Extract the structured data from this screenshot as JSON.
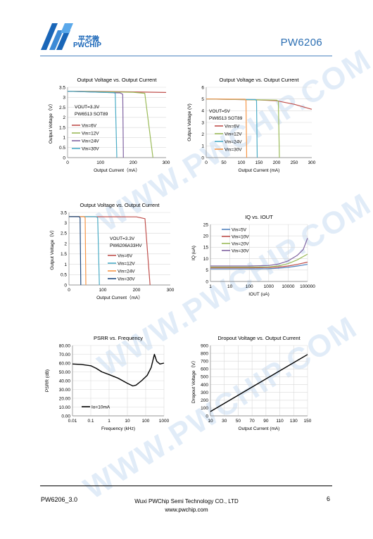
{
  "header": {
    "logo_cn": "平芯微",
    "logo_en": "PWCHIP",
    "doc_title": "PW6206",
    "accent": "#2c6fb3"
  },
  "footer": {
    "code": "PW6206_3.0",
    "company": "Wuxi PWChip Semi Technology CO., LTD",
    "site": "www.pwchip.com",
    "page": "6"
  },
  "watermark": "WWW.PWCHIP.COM",
  "chart_data": [
    {
      "id": "c1",
      "type": "line",
      "title": "Output Voltage vs. Output Current",
      "xlabel": "Output Current（mA）",
      "ylabel": "Output Voltage（V）",
      "xlim": [
        0,
        300
      ],
      "ylim": [
        0,
        3.5
      ],
      "xticks": [
        "0",
        "100",
        "200",
        "300"
      ],
      "yticks": [
        "0",
        "0.5",
        "1",
        "1.5",
        "2",
        "2.5",
        "3",
        "3.5"
      ],
      "annotations": [
        "VOUT=3.3V",
        "PW6513   SOT89"
      ],
      "series": [
        {
          "name": "Vin=6V",
          "color": "#c0504d",
          "x": [
            0,
            100,
            200,
            300
          ],
          "y": [
            3.3,
            3.29,
            3.27,
            3.24
          ]
        },
        {
          "name": "Vin=12V",
          "color": "#9bbb59",
          "x": [
            0,
            200,
            235,
            260
          ],
          "y": [
            3.3,
            3.25,
            3.2,
            0
          ]
        },
        {
          "name": "Vin=24V",
          "color": "#8064a2",
          "x": [
            0,
            160,
            168,
            170
          ],
          "y": [
            3.3,
            3.22,
            3.15,
            0
          ]
        },
        {
          "name": "Vin=30V",
          "color": "#4bacc6",
          "x": [
            0,
            140,
            145,
            150
          ],
          "y": [
            3.3,
            3.23,
            3.2,
            0
          ]
        }
      ]
    },
    {
      "id": "c2",
      "type": "line",
      "title": "Output Voltage vs. Output Current",
      "xlabel": "Output Current (mA)",
      "ylabel": "Output Voltage (V)",
      "xlim": [
        0,
        300
      ],
      "ylim": [
        0,
        6
      ],
      "xticks": [
        "0",
        "50",
        "100",
        "150",
        "200",
        "250",
        "300"
      ],
      "yticks": [
        "0",
        "1",
        "2",
        "3",
        "4",
        "5",
        "6"
      ],
      "annotations": [
        "VOUT=5V",
        "PW6513   SOT89"
      ],
      "series": [
        {
          "name": "Vin=6V",
          "color": "#c0504d",
          "x": [
            0,
            150,
            200,
            250,
            300
          ],
          "y": [
            5,
            4.92,
            4.85,
            4.55,
            4.12
          ]
        },
        {
          "name": "Vin=12V",
          "color": "#9bbb59",
          "x": [
            0,
            200,
            205,
            208
          ],
          "y": [
            5,
            4.9,
            4.8,
            0
          ]
        },
        {
          "name": "Vin=24V",
          "color": "#4bacc6",
          "x": [
            0,
            140,
            143,
            145
          ],
          "y": [
            5,
            4.95,
            4.85,
            0
          ]
        },
        {
          "name": "Vin=30V",
          "color": "#f79646",
          "x": [
            0,
            110,
            113,
            115
          ],
          "y": [
            5,
            4.98,
            4.9,
            0
          ]
        }
      ]
    },
    {
      "id": "c3",
      "type": "line",
      "title": "Output Voltage vs. Output Current",
      "xlabel": "Output Current（mA）",
      "ylabel": "Output Voltage（V）",
      "xlim": [
        0,
        300
      ],
      "ylim": [
        0,
        3.5
      ],
      "xticks": [
        "0",
        "100",
        "200",
        "300"
      ],
      "yticks": [
        "0",
        "0.5",
        "1",
        "1.5",
        "2",
        "2.5",
        "3",
        "3.5"
      ],
      "annotations": [
        "VOUT=3.3V",
        "PW6206A33HV"
      ],
      "series": [
        {
          "name": "Vin=6V",
          "color": "#c0504d",
          "x": [
            0,
            200,
            225,
            240
          ],
          "y": [
            3.3,
            3.29,
            3.2,
            0
          ]
        },
        {
          "name": "Vin=12V",
          "color": "#4bacc6",
          "x": [
            0,
            80,
            85,
            90
          ],
          "y": [
            3.3,
            3.3,
            3.25,
            0
          ]
        },
        {
          "name": "Vin=24V",
          "color": "#f79646",
          "x": [
            0,
            45,
            48,
            50
          ],
          "y": [
            3.3,
            3.3,
            3.25,
            0
          ]
        },
        {
          "name": "Vin=30V",
          "color": "#1f497d",
          "x": [
            0,
            30,
            33,
            35
          ],
          "y": [
            3.3,
            3.3,
            3.25,
            0
          ]
        }
      ]
    },
    {
      "id": "c4",
      "type": "line",
      "title": "IQ vs. IOUT",
      "xlabel": "IOUT (uA)",
      "ylabel": "IQ (uA)",
      "xscale": "log",
      "xlim": [
        1,
        100000
      ],
      "ylim": [
        0,
        25
      ],
      "xticks": [
        "1",
        "10",
        "100",
        "1000",
        "10000",
        "100000"
      ],
      "yticks": [
        "0",
        "5",
        "10",
        "15",
        "20",
        "25"
      ],
      "series": [
        {
          "name": "Vin=5V",
          "color": "#4f81bd",
          "x": [
            1,
            10,
            100,
            1000,
            3000,
            10000,
            30000,
            100000
          ],
          "y": [
            5.5,
            5.5,
            5.5,
            5.6,
            5.8,
            6.2,
            6.8,
            7.5
          ]
        },
        {
          "name": "Vin=10V",
          "color": "#c0504d",
          "x": [
            1,
            10,
            100,
            1000,
            3000,
            10000,
            30000,
            100000
          ],
          "y": [
            6,
            6,
            6,
            6.1,
            6.3,
            6.8,
            7.5,
            8.5
          ]
        },
        {
          "name": "Vin=20V",
          "color": "#9bbb59",
          "x": [
            1,
            10,
            100,
            1000,
            3000,
            10000,
            30000,
            100000
          ],
          "y": [
            6.3,
            6.3,
            6.3,
            6.4,
            6.8,
            7.8,
            9.5,
            12
          ]
        },
        {
          "name": "Vin=30V",
          "color": "#8064a2",
          "x": [
            1,
            10,
            100,
            1000,
            3000,
            10000,
            30000,
            60000,
            100000
          ],
          "y": [
            6.8,
            6.8,
            6.8,
            7,
            7.6,
            9,
            11.5,
            14,
            19
          ]
        }
      ]
    },
    {
      "id": "c5",
      "type": "line",
      "title": "PSRR vs. Frequency",
      "xlabel": "Frequency (kHz)",
      "ylabel": "PSRR (dB)",
      "xscale": "log",
      "xlim": [
        0.01,
        1000
      ],
      "ylim": [
        0,
        80
      ],
      "xticks": [
        "0.01",
        "0.1",
        "1",
        "10",
        "100",
        "1000"
      ],
      "yticks": [
        "0.00",
        "10.00",
        "20.00",
        "30.00",
        "40.00",
        "50.00",
        "60.00",
        "70.00",
        "80.00"
      ],
      "series": [
        {
          "name": "Io=10mA",
          "color": "#000000",
          "x": [
            0.01,
            0.03,
            0.1,
            0.2,
            0.4,
            1,
            3,
            10,
            20,
            30,
            60,
            120,
            200,
            300,
            400,
            600,
            1000
          ],
          "y": [
            59,
            58.5,
            57,
            54,
            50,
            47,
            43,
            37,
            34,
            35,
            40,
            46,
            55,
            70,
            62,
            59,
            60
          ]
        }
      ]
    },
    {
      "id": "c6",
      "type": "line",
      "title": "Dropout Voltage vs. Output Current",
      "xlabel": "Output Current (mA)",
      "ylabel": "Dropout Voltage（V）",
      "xlim": [
        10,
        150
      ],
      "ylim": [
        0,
        900
      ],
      "xticks": [
        "10",
        "30",
        "50",
        "70",
        "90",
        "110",
        "130",
        "150"
      ],
      "yticks": [
        "0",
        "100",
        "200",
        "300",
        "400",
        "500",
        "600",
        "700",
        "800",
        "900"
      ],
      "series": [
        {
          "name": "",
          "color": "#000000",
          "x": [
            10,
            150
          ],
          "y": [
            55,
            785
          ]
        }
      ]
    }
  ]
}
